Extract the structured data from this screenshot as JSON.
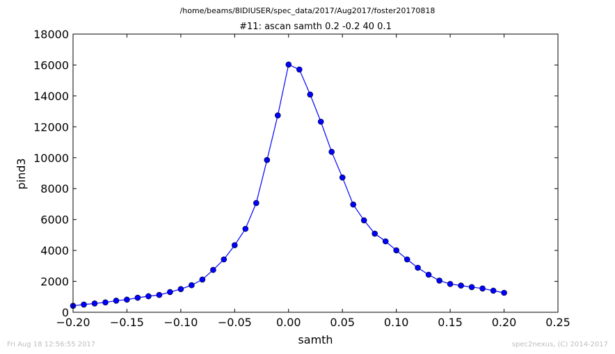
{
  "chart_data": {
    "type": "line",
    "suptitle": "/home/beams/8IDIUSER/spec_data/2017/Aug2017/foster20170818",
    "title": "#11: ascan  samth 0.2 -0.2  40 0.1",
    "xlabel": "samth",
    "ylabel": "pind3",
    "xlim": [
      -0.2,
      0.25
    ],
    "ylim": [
      0,
      18000
    ],
    "x_ticks": [
      -0.2,
      -0.15,
      -0.1,
      -0.05,
      0.0,
      0.05,
      0.1,
      0.15,
      0.2,
      0.25
    ],
    "x_tick_labels": [
      "−0.20",
      "−0.15",
      "−0.10",
      "−0.05",
      "0.00",
      "0.05",
      "0.10",
      "0.15",
      "0.20",
      "0.25"
    ],
    "y_ticks": [
      0,
      2000,
      4000,
      6000,
      8000,
      10000,
      12000,
      14000,
      16000,
      18000
    ],
    "y_tick_labels": [
      "0",
      "2000",
      "4000",
      "6000",
      "8000",
      "10000",
      "12000",
      "14000",
      "16000",
      "18000"
    ],
    "grid": false,
    "series_color": "#0000ff",
    "x": [
      -0.2,
      -0.19,
      -0.18,
      -0.17,
      -0.16,
      -0.15,
      -0.14,
      -0.13,
      -0.12,
      -0.11,
      -0.1,
      -0.09,
      -0.08,
      -0.07,
      -0.06,
      -0.05,
      -0.04,
      -0.03,
      -0.02,
      -0.01,
      0.0,
      0.01,
      0.02,
      0.03,
      0.04,
      0.05,
      0.06,
      0.07,
      0.08,
      0.09,
      0.1,
      0.11,
      0.12,
      0.13,
      0.14,
      0.15,
      0.16,
      0.17,
      0.18,
      0.19,
      0.2
    ],
    "values": [
      420,
      500,
      570,
      640,
      750,
      820,
      940,
      1040,
      1120,
      1310,
      1500,
      1750,
      2120,
      2740,
      3420,
      4340,
      5400,
      7070,
      9850,
      12740,
      16030,
      15710,
      14090,
      12330,
      10380,
      8720,
      6970,
      5950,
      5090,
      4590,
      4010,
      3420,
      2880,
      2430,
      2050,
      1830,
      1730,
      1630,
      1540,
      1400,
      1260
    ]
  },
  "footer": {
    "left": "Fri Aug 18 12:56:55 2017",
    "right": "spec2nexus, (C) 2014-2017"
  }
}
